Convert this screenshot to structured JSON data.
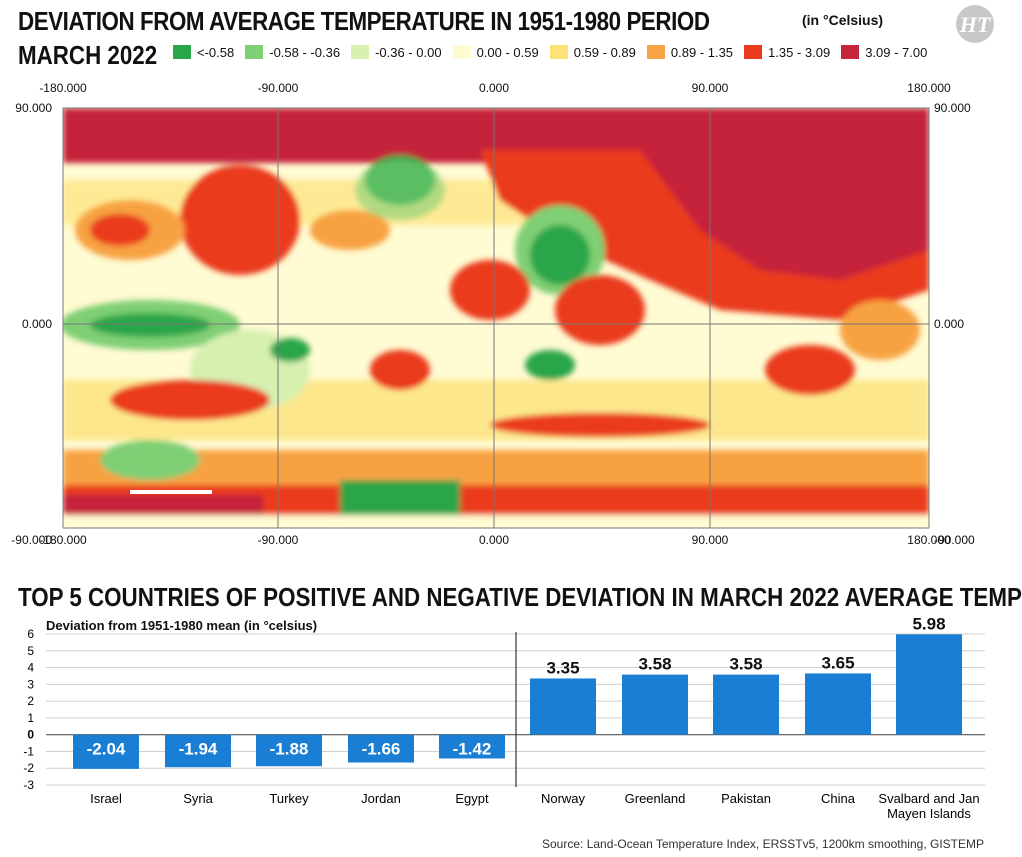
{
  "header": {
    "title": "DEVIATION FROM AVERAGE TEMPERATURE IN 1951-1980 PERIOD",
    "subtitle": "MARCH 2022",
    "unit": "(in °Celsius)",
    "logo_text": "HT"
  },
  "legend": [
    {
      "label": "<-0.58",
      "color": "#2aa548"
    },
    {
      "label": "-0.58 - -0.36",
      "color": "#7fcf74"
    },
    {
      "label": "-0.36 - 0.00",
      "color": "#d6f0b0"
    },
    {
      "label": "0.00 - 0.59",
      "color": "#fffbd2"
    },
    {
      "label": "0.59 - 0.89",
      "color": "#fde27a"
    },
    {
      "label": "0.89 - 1.35",
      "color": "#f7a243"
    },
    {
      "label": "1.35 - 3.09",
      "color": "#ea3a1d"
    },
    {
      "label": "3.09 - 7.00",
      "color": "#c5243a"
    }
  ],
  "map": {
    "lon_ticks": [
      "-180.000",
      "-90.000",
      "0.000",
      "90.000",
      "180.000"
    ],
    "lat_ticks_left": [
      "90.000",
      "0.000",
      "-90.000"
    ],
    "lat_ticks_right": [
      "90.000",
      "0.000",
      "-90.000"
    ]
  },
  "section2_title": "TOP 5 COUNTRIES OF POSITIVE AND NEGATIVE DEVIATION IN MARCH 2022 AVERAGE TEMP",
  "chart_data": {
    "type": "bar",
    "ylabel": "Deviation from 1951-1980 mean (in °celsius)",
    "ylim": [
      -3,
      6
    ],
    "yticks": [
      "6",
      "5",
      "4",
      "3",
      "2",
      "1",
      "0",
      "-1",
      "-2",
      "-3"
    ],
    "categories": [
      "Israel",
      "Syria",
      "Turkey",
      "Jordan",
      "Egypt",
      "Norway",
      "Greenland",
      "Pakistan",
      "China",
      "Svalbard and Jan Mayen Islands"
    ],
    "category_lines": [
      [
        "Israel"
      ],
      [
        "Syria"
      ],
      [
        "Turkey"
      ],
      [
        "Jordan"
      ],
      [
        "Egypt"
      ],
      [
        "Norway"
      ],
      [
        "Greenland"
      ],
      [
        "Pakistan"
      ],
      [
        "China"
      ],
      [
        "Svalbard and Jan",
        "Mayen Islands"
      ]
    ],
    "values": [
      -2.04,
      -1.94,
      -1.88,
      -1.66,
      -1.42,
      3.35,
      3.58,
      3.58,
      3.65,
      5.98
    ],
    "value_labels": [
      "-2.04",
      "-1.94",
      "-1.88",
      "-1.66",
      "-1.42",
      "3.35",
      "3.58",
      "3.58",
      "3.65",
      "5.98"
    ],
    "bar_color": "#1a7fd4",
    "grid": true
  },
  "source": "Source: Land-Ocean Temperature Index, ERSSTv5, 1200km smoothing, GISTEMP"
}
